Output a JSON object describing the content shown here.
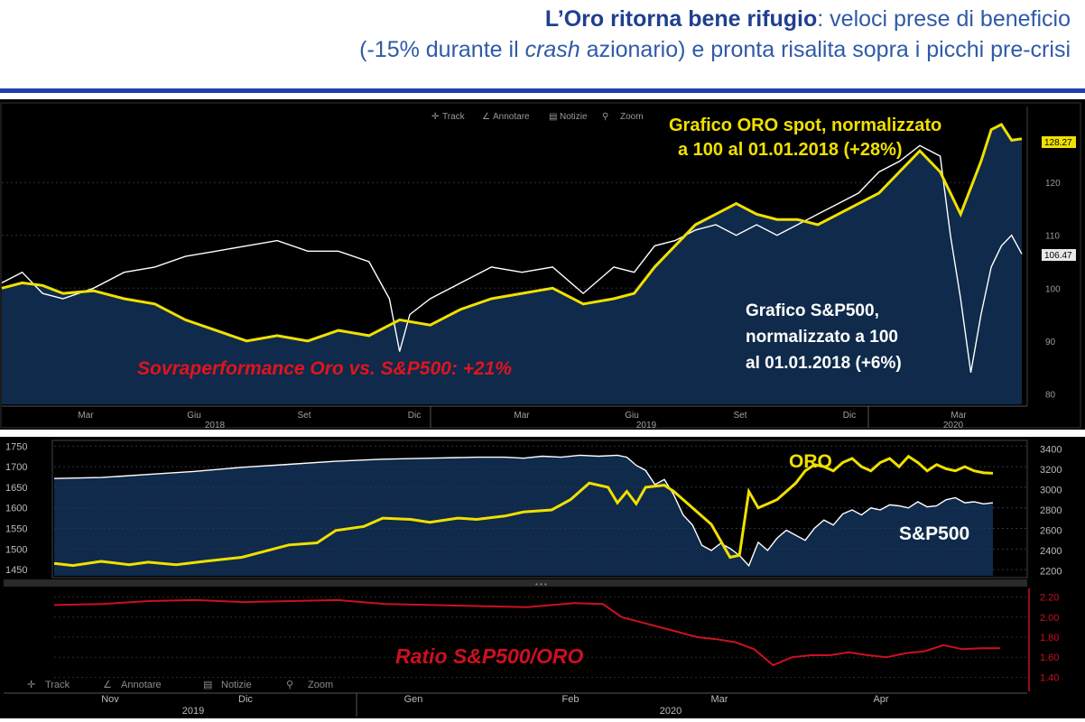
{
  "title": {
    "bold": "L’Oro ritorna bene rifugio",
    "line1_rest": ": veloci prese di beneficio",
    "line2_a": "(-15% durante il ",
    "line2_em": "crash",
    "line2_b": " azionario) e pronta risalita sopra i picchi pre-crisi"
  },
  "toolbar": {
    "track": "Track",
    "annotate": "Annotare",
    "news": "Notizie",
    "zoom": "Zoom"
  },
  "colors": {
    "gold": "#f0e000",
    "sp500": "#ffffff",
    "ratio": "#cc1020",
    "area": "#0f2a4a",
    "title": "#1f3f8f",
    "label_red": "#e0141e"
  },
  "chart_data": [
    {
      "type": "line",
      "annotations": {
        "gold": [
          "Grafico ORO spot, normalizzato",
          "a 100 al 01.01.2018 (+28%)"
        ],
        "sp500": [
          "Grafico S&P500,",
          "normalizzato a 100",
          "al 01.01.2018 (+6%)"
        ],
        "outperformance": "Sovraperformance Oro vs. S&P500: +21%"
      },
      "last_value_labels": [
        "128.27",
        "106.47"
      ],
      "y_ticks": [
        "80",
        "90",
        "100",
        "110",
        "120"
      ],
      "ylim": [
        78,
        132
      ],
      "x_tick_labels": [
        "Mar",
        "Giu",
        "Set",
        "Dic",
        "Mar",
        "Giu",
        "Set",
        "Dic",
        "Mar"
      ],
      "year_labels": [
        "2018",
        "2019",
        "2020"
      ],
      "series": [
        {
          "name": "ORO",
          "x": [
            0,
            2,
            4,
            6,
            9,
            12,
            15,
            18,
            21,
            24,
            27,
            30,
            33,
            36,
            39,
            42,
            45,
            48,
            51,
            54,
            57,
            60,
            62,
            64,
            66,
            68,
            70,
            72,
            74,
            76,
            78,
            80,
            82,
            84,
            86,
            88,
            90,
            92,
            94,
            96,
            97,
            98,
            99,
            100
          ],
          "values": [
            100,
            101,
            100.5,
            99,
            99.5,
            98,
            97,
            94,
            92,
            90,
            91,
            90,
            92,
            91,
            94,
            93,
            96,
            98,
            99,
            100,
            97,
            98,
            99,
            104,
            108,
            112,
            114,
            116,
            114,
            113,
            113,
            112,
            114,
            116,
            118,
            122,
            126,
            122,
            114,
            124,
            130,
            131,
            128,
            128.27
          ]
        },
        {
          "name": "S&P500",
          "x": [
            0,
            2,
            4,
            6,
            9,
            12,
            15,
            18,
            21,
            24,
            27,
            30,
            33,
            36,
            38,
            39,
            40,
            42,
            45,
            48,
            51,
            54,
            57,
            60,
            62,
            64,
            66,
            68,
            70,
            72,
            74,
            76,
            78,
            80,
            82,
            84,
            86,
            88,
            90,
            92,
            93,
            94,
            95,
            96,
            97,
            98,
            99,
            100
          ],
          "values": [
            101,
            103,
            99,
            98,
            100,
            103,
            104,
            106,
            107,
            108,
            109,
            107,
            107,
            105,
            98,
            88,
            95,
            98,
            101,
            104,
            103,
            104,
            99,
            104,
            103,
            108,
            109,
            111,
            112,
            110,
            112,
            110,
            112,
            114,
            116,
            118,
            122,
            124,
            127,
            125,
            110,
            98,
            84,
            95,
            104,
            108,
            110,
            106.47
          ]
        }
      ]
    },
    {
      "type": "line",
      "labels": {
        "gold": "ORO",
        "sp500": "S&P500"
      },
      "left_ticks": [
        "1450",
        "1500",
        "1550",
        "1600",
        "1650",
        "1700",
        "1750"
      ],
      "right_ticks": [
        "2200",
        "2400",
        "2600",
        "2800",
        "3000",
        "3200",
        "3400"
      ],
      "gold_ylim": [
        1435,
        1755
      ],
      "sp_ylim": [
        2150,
        3450
      ],
      "series": [
        {
          "name": "ORO",
          "x": [
            0,
            2,
            5,
            8,
            10,
            13,
            16,
            20,
            25,
            28,
            30,
            33,
            35,
            38,
            40,
            43,
            45,
            48,
            50,
            53,
            55,
            57,
            59,
            60,
            61,
            62,
            63,
            65,
            66,
            67,
            68,
            70,
            71,
            72,
            73,
            74,
            75,
            76,
            77,
            78,
            79,
            80,
            81,
            82,
            83,
            84,
            85,
            86,
            87,
            88,
            89,
            90,
            91,
            92,
            93,
            94,
            95,
            96,
            97,
            98,
            99,
            100
          ],
          "values": [
            1465,
            1460,
            1470,
            1462,
            1468,
            1462,
            1470,
            1480,
            1510,
            1515,
            1545,
            1555,
            1575,
            1572,
            1565,
            1575,
            1572,
            1580,
            1590,
            1595,
            1620,
            1660,
            1650,
            1612,
            1640,
            1610,
            1650,
            1655,
            1640,
            1620,
            1600,
            1560,
            1520,
            1480,
            1485,
            1640,
            1600,
            1610,
            1620,
            1640,
            1660,
            1690,
            1705,
            1700,
            1690,
            1710,
            1720,
            1700,
            1690,
            1710,
            1720,
            1700,
            1725,
            1710,
            1690,
            1705,
            1695,
            1690,
            1700,
            1690,
            1685,
            1684
          ]
        },
        {
          "name": "S&P500",
          "x": [
            0,
            5,
            10,
            15,
            20,
            25,
            30,
            35,
            40,
            45,
            48,
            50,
            52,
            54,
            56,
            58,
            60,
            61,
            62,
            63,
            64,
            65,
            66,
            67,
            68,
            69,
            70,
            71,
            72,
            73,
            74,
            75,
            76,
            77,
            78,
            79,
            80,
            81,
            82,
            83,
            84,
            85,
            86,
            87,
            88,
            89,
            90,
            91,
            92,
            93,
            94,
            95,
            96,
            97,
            98,
            99,
            100
          ],
          "values": [
            3110,
            3120,
            3150,
            3180,
            3220,
            3250,
            3280,
            3300,
            3310,
            3320,
            3320,
            3310,
            3330,
            3320,
            3340,
            3330,
            3340,
            3320,
            3240,
            3190,
            3050,
            3100,
            2950,
            2750,
            2650,
            2450,
            2400,
            2470,
            2420,
            2350,
            2250,
            2480,
            2400,
            2520,
            2600,
            2550,
            2500,
            2620,
            2700,
            2650,
            2760,
            2800,
            2750,
            2820,
            2800,
            2850,
            2840,
            2820,
            2880,
            2830,
            2840,
            2900,
            2920,
            2870,
            2880,
            2860,
            2870
          ]
        }
      ],
      "x_tick_labels": [
        "Nov",
        "Dic",
        "Gen",
        "Feb",
        "Mar",
        "Apr"
      ],
      "year_labels": [
        "2019",
        "2020"
      ]
    },
    {
      "type": "line",
      "label": "Ratio S&P500/ORO",
      "ticks": [
        "1.40",
        "1.60",
        "1.80",
        "2.00",
        "2.20"
      ],
      "ylim": [
        1.35,
        2.25
      ],
      "series": [
        {
          "name": "Ratio S&P500/ORO",
          "x": [
            0,
            5,
            10,
            15,
            20,
            25,
            30,
            35,
            40,
            45,
            50,
            55,
            58,
            60,
            62,
            64,
            66,
            68,
            70,
            72,
            74,
            76,
            78,
            80,
            82,
            84,
            86,
            88,
            90,
            92,
            94,
            96,
            98,
            100
          ],
          "values": [
            2.12,
            2.13,
            2.16,
            2.17,
            2.15,
            2.16,
            2.17,
            2.13,
            2.12,
            2.11,
            2.1,
            2.14,
            2.13,
            2.0,
            1.95,
            1.9,
            1.85,
            1.8,
            1.78,
            1.75,
            1.68,
            1.52,
            1.6,
            1.62,
            1.62,
            1.65,
            1.62,
            1.6,
            1.64,
            1.66,
            1.72,
            1.68,
            1.69,
            1.69
          ]
        }
      ]
    }
  ]
}
